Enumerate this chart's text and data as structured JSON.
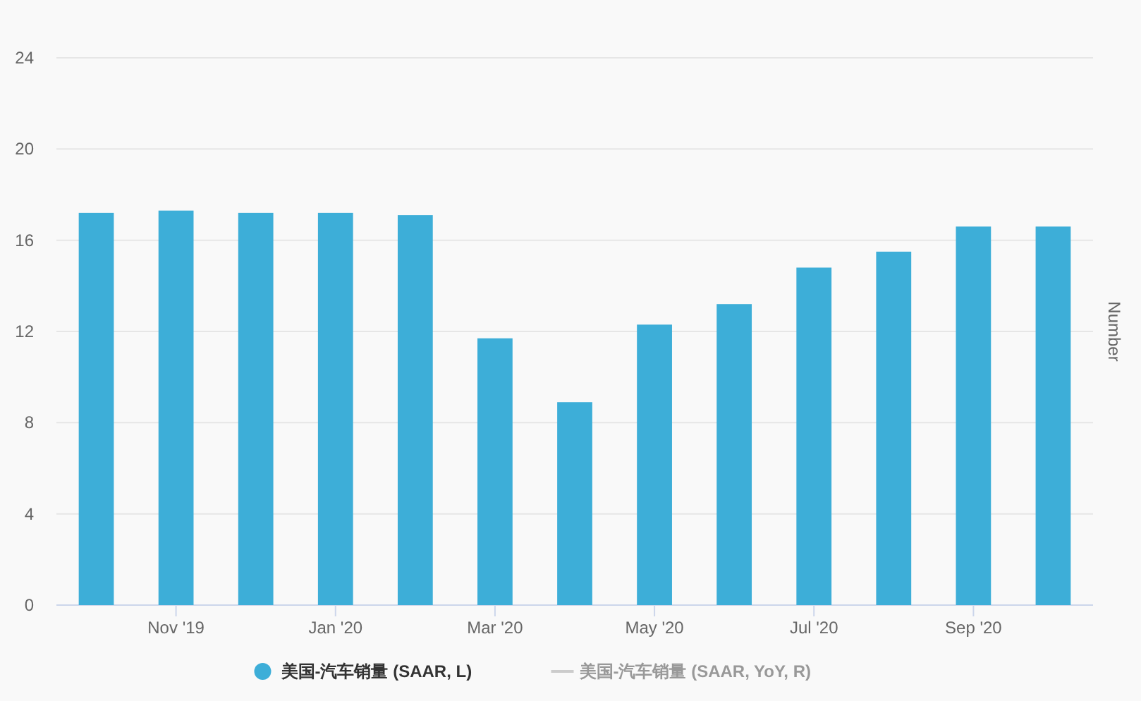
{
  "chart_data": {
    "type": "bar",
    "categories": [
      null,
      "Nov '19",
      null,
      "Jan '20",
      null,
      "Mar '20",
      null,
      "May '20",
      null,
      "Jul '20",
      null,
      "Sep '20",
      null
    ],
    "series": [
      {
        "name": "美国-汽车销量 (SAAR, L)",
        "color": "#3daed8",
        "values": [
          17.2,
          17.3,
          17.2,
          17.2,
          17.1,
          11.7,
          8.9,
          12.3,
          13.2,
          14.8,
          15.5,
          16.6,
          16.6
        ]
      },
      {
        "name": "美国-汽车销量 (SAAR, YoY, R)",
        "type": "line",
        "color": "#cccccc",
        "values": [
          null,
          null,
          null,
          null,
          null,
          null,
          null,
          null,
          null,
          null,
          null,
          null,
          null
        ]
      }
    ],
    "y2label": "Number",
    "ylim": [
      0,
      24
    ],
    "yticks": [
      0,
      4,
      8,
      12,
      16,
      20,
      24
    ],
    "grid": "y",
    "legend": "bottom"
  }
}
